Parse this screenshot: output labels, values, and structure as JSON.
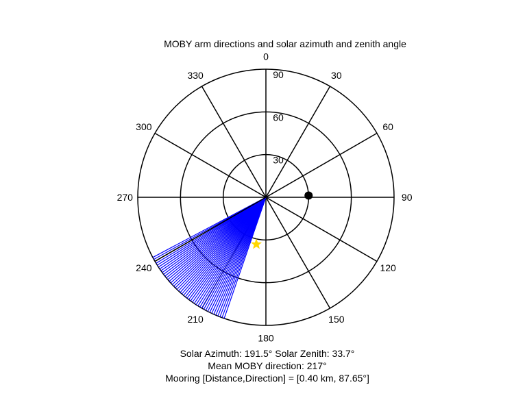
{
  "chart_data": {
    "type": "polar",
    "title": "MOBY arm directions and solar azimuth and zenith angle",
    "angle_tick_labels": [
      "0",
      "30",
      "60",
      "90",
      "120",
      "150",
      "180",
      "210",
      "240",
      "270",
      "300",
      "330"
    ],
    "radial_tick_labels": [
      "30",
      "60",
      "90"
    ],
    "radial_range": [
      0,
      90
    ],
    "series": [
      {
        "kind": "arm_lines",
        "color": "#0000ff",
        "directions_deg": [
          199,
          200,
          201,
          202,
          203,
          204,
          205,
          206,
          207,
          208,
          209,
          210,
          211,
          212,
          213,
          214,
          215,
          216,
          217,
          218,
          219,
          220,
          221,
          222,
          223,
          224,
          225,
          226,
          227,
          228,
          229,
          230,
          231,
          232,
          233,
          234,
          235,
          236,
          237,
          238,
          239,
          240,
          241,
          242
        ],
        "length": 90
      },
      {
        "kind": "reference_line",
        "color": "#000000",
        "direction_deg": 240,
        "length": 90
      },
      {
        "kind": "solar_position",
        "color": "#ffd700",
        "marker": "star",
        "azimuth_deg": 191.5,
        "zenith_deg": 33.7
      },
      {
        "kind": "mooring",
        "color": "#000000",
        "marker": "filled-circle",
        "direction_deg": 87.65,
        "distance_km": 0.4
      }
    ]
  },
  "captions": {
    "line1": "Solar Azimuth: 191.5°   Solar Zenith: 33.7°",
    "line2": "Mean MOBY direction: 217°",
    "line3": "Mooring [Distance,Direction] = [0.40 km, 87.65°]"
  }
}
